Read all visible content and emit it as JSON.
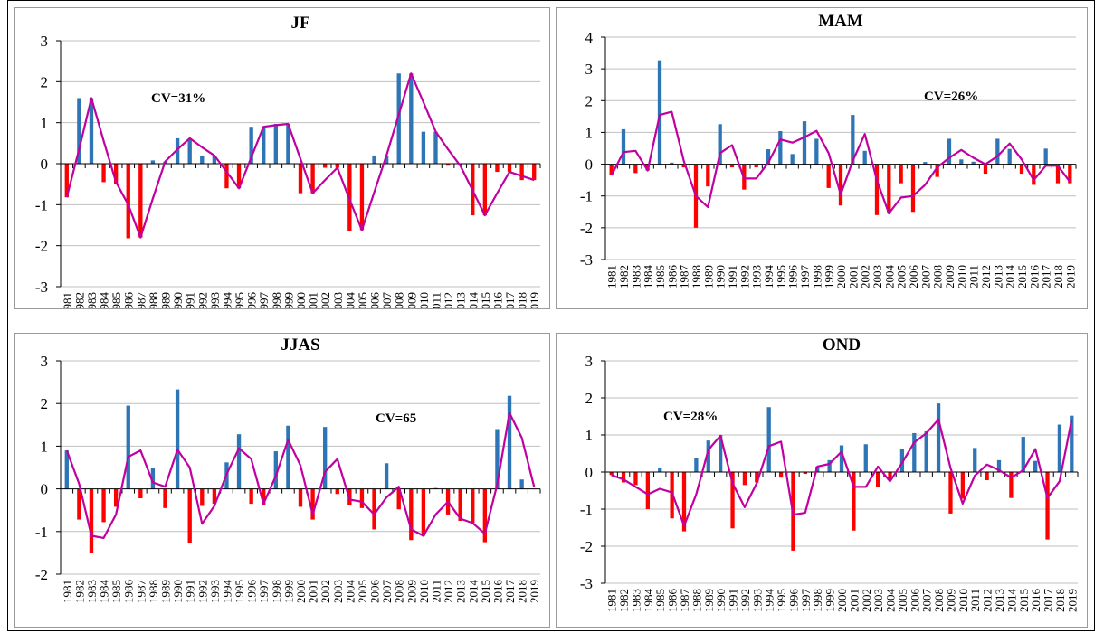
{
  "chart_data": [
    {
      "type": "bar",
      "title": "JF",
      "annotation": "CV=31%",
      "ylim": [
        -3,
        3
      ],
      "yticks": [
        -3,
        -2,
        -1,
        0,
        1,
        2,
        3
      ],
      "categories": [
        "1981",
        "1982",
        "1983",
        "1984",
        "1985",
        "1986",
        "1987",
        "1988",
        "1989",
        "1990",
        "1991",
        "1992",
        "1993",
        "1994",
        "1995",
        "1996",
        "1997",
        "1998",
        "1999",
        "2000",
        "2001",
        "2002",
        "2003",
        "2004",
        "2005",
        "2006",
        "2007",
        "2008",
        "2009",
        "2010",
        "2011",
        "2012",
        "2013",
        "2014",
        "2015",
        "2016",
        "2017",
        "2018",
        "2019"
      ],
      "values": [
        -0.82,
        1.6,
        1.6,
        -0.45,
        -0.5,
        -1.82,
        -1.8,
        0.08,
        0.05,
        0.62,
        0.6,
        0.2,
        0.2,
        -0.6,
        -0.6,
        0.9,
        0.9,
        0.97,
        0.97,
        -0.72,
        -0.72,
        -0.1,
        -0.1,
        -1.65,
        -1.62,
        0.2,
        0.2,
        2.2,
        2.2,
        0.78,
        0.78,
        -0.05,
        -0.05,
        -1.26,
        -1.26,
        -0.2,
        -0.2,
        -0.4,
        -0.4
      ],
      "line": [
        -0.82,
        0.35,
        1.6,
        0.55,
        -0.45,
        -1.0,
        -1.8,
        -0.85,
        0.05,
        0.35,
        0.62,
        0.4,
        0.2,
        -0.2,
        -0.6,
        0.15,
        0.9,
        0.94,
        0.97,
        0.12,
        -0.72,
        -0.4,
        -0.1,
        -0.88,
        -1.62,
        -0.7,
        0.2,
        1.2,
        2.2,
        1.5,
        0.78,
        0.35,
        -0.05,
        -0.65,
        -1.26,
        -0.72,
        -0.2,
        -0.3,
        -0.4
      ]
    },
    {
      "type": "bar",
      "title": "MAM",
      "annotation": "CV=26%",
      "ylim": [
        -3,
        4
      ],
      "yticks": [
        -3,
        -2,
        -1,
        0,
        1,
        2,
        3,
        4
      ],
      "categories": [
        "1981",
        "1982",
        "1983",
        "1984",
        "1985",
        "1986",
        "1987",
        "1988",
        "1989",
        "1990",
        "1991",
        "1992",
        "1993",
        "1994",
        "1995",
        "1996",
        "1997",
        "1998",
        "1999",
        "2000",
        "2001",
        "2002",
        "2003",
        "2004",
        "2005",
        "2006",
        "2007",
        "2008",
        "2009",
        "2010",
        "2011",
        "2012",
        "2013",
        "2014",
        "2015",
        "2016",
        "2017",
        "2018",
        "2019"
      ],
      "values": [
        -0.35,
        1.1,
        -0.28,
        -0.2,
        3.27,
        0.05,
        -0.1,
        -2.0,
        -0.7,
        1.26,
        -0.1,
        -0.8,
        -0.1,
        0.47,
        1.04,
        0.32,
        1.35,
        0.8,
        -0.75,
        -1.3,
        1.55,
        0.42,
        -1.6,
        -1.55,
        -0.6,
        -1.5,
        0.07,
        -0.4,
        0.8,
        0.15,
        0.08,
        -0.3,
        0.8,
        0.48,
        -0.3,
        -0.65,
        0.49,
        -0.6,
        -0.6
      ],
      "line": [
        -0.35,
        0.38,
        0.42,
        -0.2,
        1.55,
        1.65,
        0.1,
        -1.0,
        -1.35,
        0.35,
        0.6,
        -0.45,
        -0.45,
        0.05,
        0.78,
        0.68,
        0.85,
        1.05,
        0.35,
        -0.95,
        0.1,
        0.95,
        -0.5,
        -1.55,
        -1.05,
        -1.0,
        -0.65,
        -0.1,
        0.2,
        0.45,
        0.2,
        0.0,
        0.25,
        0.65,
        0.15,
        -0.5,
        -0.05,
        -0.05,
        -0.55
      ]
    },
    {
      "type": "bar",
      "title": "JJAS",
      "annotation": "CV=65",
      "ylim": [
        -2,
        3
      ],
      "yticks": [
        -2,
        -1,
        0,
        1,
        2,
        3
      ],
      "categories": [
        "1981",
        "1982",
        "1983",
        "1984",
        "1985",
        "1986",
        "1987",
        "1988",
        "1989",
        "1990",
        "1991",
        "1992",
        "1993",
        "1994",
        "1995",
        "1996",
        "1997",
        "1998",
        "1999",
        "2000",
        "2001",
        "2002",
        "2003",
        "2004",
        "2005",
        "2006",
        "2007",
        "2008",
        "2009",
        "2010",
        "2011",
        "2012",
        "2013",
        "2014",
        "2015",
        "2016",
        "2017",
        "2018",
        "2019"
      ],
      "values": [
        0.9,
        -0.72,
        -1.5,
        -0.78,
        -0.42,
        1.95,
        -0.22,
        0.5,
        -0.45,
        2.33,
        -1.28,
        -0.4,
        -0.35,
        0.62,
        1.28,
        -0.35,
        -0.38,
        0.88,
        1.48,
        -0.42,
        -0.72,
        1.45,
        -0.12,
        -0.38,
        -0.45,
        -0.95,
        0.6,
        -0.48,
        -1.2,
        -1.1,
        0.02,
        -0.6,
        -0.75,
        -0.8,
        -1.25,
        1.4,
        2.18,
        0.22,
        0.0
      ],
      "line": [
        0.9,
        0.12,
        -1.1,
        -1.15,
        -0.6,
        0.75,
        0.9,
        0.15,
        0.05,
        0.92,
        0.5,
        -0.82,
        -0.4,
        0.35,
        0.95,
        0.7,
        -0.35,
        0.3,
        1.15,
        0.55,
        -0.6,
        0.4,
        0.7,
        -0.25,
        -0.3,
        -0.6,
        -0.2,
        0.05,
        -0.95,
        -1.1,
        -0.6,
        -0.3,
        -0.7,
        -0.8,
        -1.05,
        0.1,
        1.78,
        1.2,
        0.05
      ]
    },
    {
      "type": "bar",
      "title": "OND",
      "annotation": "CV=28%",
      "ylim": [
        -3,
        3
      ],
      "yticks": [
        -3,
        -2,
        -1,
        0,
        1,
        2,
        3
      ],
      "categories": [
        "1981",
        "1982",
        "1983",
        "1984",
        "1985",
        "1986",
        "1987",
        "1988",
        "1989",
        "1990",
        "1991",
        "1992",
        "1993",
        "1994",
        "1995",
        "1996",
        "1997",
        "1998",
        "1999",
        "2000",
        "2001",
        "2002",
        "2003",
        "2004",
        "2005",
        "2006",
        "2007",
        "2008",
        "2009",
        "2010",
        "2011",
        "2012",
        "2013",
        "2014",
        "2015",
        "2016",
        "2017",
        "2018",
        "2019"
      ],
      "values": [
        -0.08,
        -0.28,
        -0.35,
        -1.0,
        0.12,
        -1.25,
        -1.6,
        0.38,
        0.85,
        1.0,
        -1.52,
        -0.35,
        -0.28,
        1.75,
        -0.15,
        -2.12,
        -0.05,
        0.15,
        0.32,
        0.72,
        -1.58,
        0.75,
        -0.4,
        -0.2,
        0.62,
        1.05,
        1.1,
        1.85,
        -1.12,
        -0.72,
        0.65,
        -0.22,
        0.32,
        -0.7,
        0.95,
        0.3,
        -1.82,
        1.28,
        1.52
      ],
      "line": [
        -0.08,
        -0.2,
        -0.4,
        -0.6,
        -0.45,
        -0.55,
        -1.45,
        -0.6,
        0.6,
        0.98,
        -0.3,
        -0.95,
        -0.3,
        0.7,
        0.82,
        -1.15,
        -1.1,
        0.15,
        0.22,
        0.55,
        -0.4,
        -0.4,
        0.15,
        -0.25,
        0.25,
        0.8,
        1.05,
        1.42,
        0.1,
        -0.85,
        -0.1,
        0.2,
        0.05,
        -0.15,
        0.05,
        0.62,
        -0.7,
        -0.25,
        1.42
      ]
    }
  ],
  "colors": {
    "positive_bar": "#2e75b6",
    "negative_bar": "#ff0000",
    "line": "#c000a0",
    "gridline": "#bfbfbf",
    "axis": "#000000"
  },
  "legend": "none",
  "grid": true
}
